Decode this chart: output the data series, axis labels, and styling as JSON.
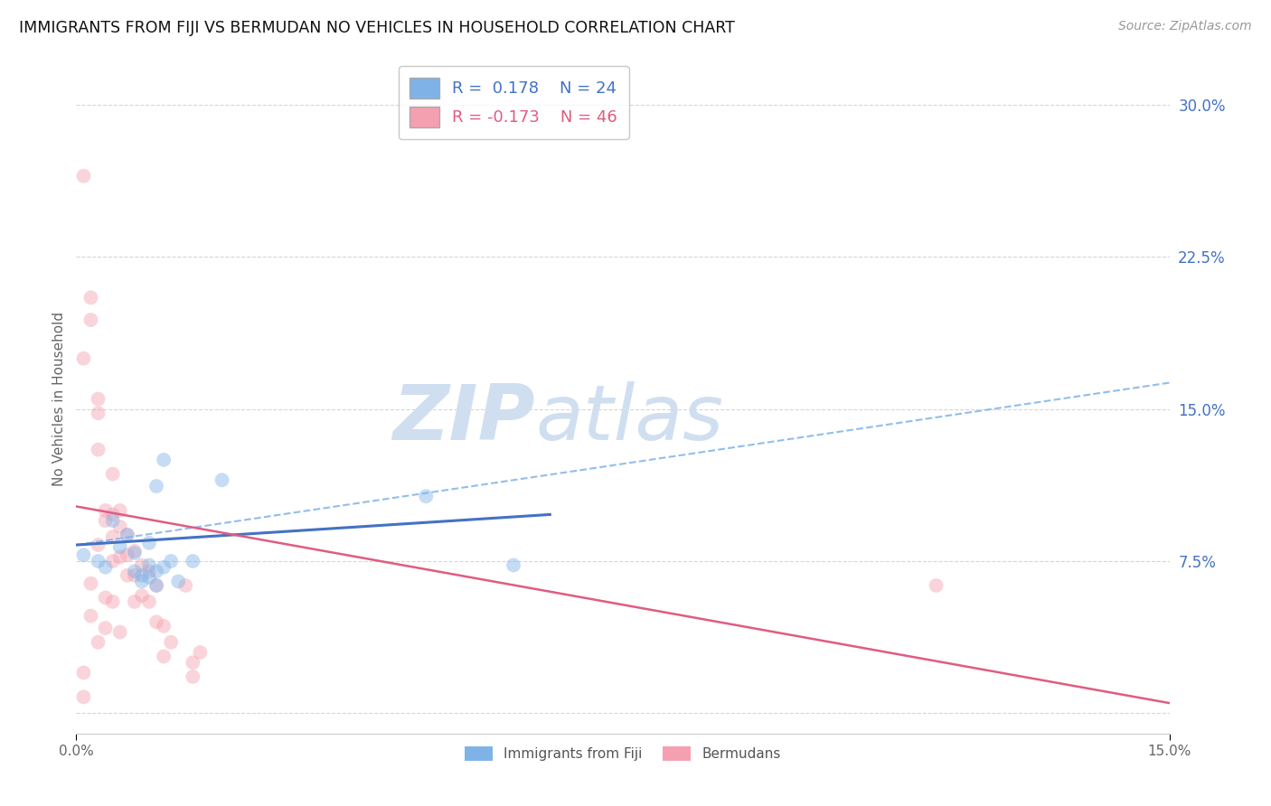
{
  "title": "IMMIGRANTS FROM FIJI VS BERMUDAN NO VEHICLES IN HOUSEHOLD CORRELATION CHART",
  "source": "Source: ZipAtlas.com",
  "ylabel_label": "No Vehicles in Household",
  "right_yticks": [
    0.0,
    0.075,
    0.15,
    0.225,
    0.3
  ],
  "right_yticklabels": [
    "",
    "7.5%",
    "15.0%",
    "22.5%",
    "30.0%"
  ],
  "xlim": [
    0.0,
    0.15
  ],
  "ylim": [
    -0.01,
    0.32
  ],
  "fiji_R": 0.178,
  "fiji_N": 24,
  "bermuda_R": -0.173,
  "bermuda_N": 46,
  "fiji_color": "#7fb3e8",
  "bermuda_color": "#f4a0b0",
  "fiji_line_color": "#4472c4",
  "bermuda_line_color": "#e05c80",
  "dashed_line_color": "#7fb3e8",
  "watermark_zip": "ZIP",
  "watermark_atlas": "atlas",
  "watermark_color": "#d0dff0",
  "background_color": "#ffffff",
  "fiji_scatter_x": [
    0.001,
    0.003,
    0.004,
    0.005,
    0.006,
    0.007,
    0.008,
    0.008,
    0.009,
    0.009,
    0.01,
    0.01,
    0.01,
    0.011,
    0.011,
    0.011,
    0.012,
    0.012,
    0.013,
    0.014,
    0.016,
    0.02,
    0.048,
    0.06
  ],
  "fiji_scatter_y": [
    0.078,
    0.075,
    0.072,
    0.095,
    0.082,
    0.088,
    0.07,
    0.079,
    0.065,
    0.068,
    0.073,
    0.067,
    0.084,
    0.063,
    0.07,
    0.112,
    0.072,
    0.125,
    0.075,
    0.065,
    0.075,
    0.115,
    0.107,
    0.073
  ],
  "bermuda_scatter_x": [
    0.001,
    0.002,
    0.002,
    0.003,
    0.003,
    0.003,
    0.004,
    0.004,
    0.005,
    0.005,
    0.005,
    0.005,
    0.006,
    0.006,
    0.006,
    0.007,
    0.007,
    0.007,
    0.008,
    0.008,
    0.008,
    0.009,
    0.009,
    0.01,
    0.01,
    0.011,
    0.011,
    0.012,
    0.012,
    0.013,
    0.015,
    0.016,
    0.016,
    0.017,
    0.002,
    0.003,
    0.004,
    0.001,
    0.001,
    0.002,
    0.003,
    0.004,
    0.005,
    0.006,
    0.118,
    0.001
  ],
  "bermuda_scatter_y": [
    0.265,
    0.205,
    0.194,
    0.155,
    0.148,
    0.13,
    0.1,
    0.095,
    0.118,
    0.098,
    0.087,
    0.075,
    0.1,
    0.092,
    0.077,
    0.088,
    0.078,
    0.068,
    0.08,
    0.068,
    0.055,
    0.073,
    0.058,
    0.07,
    0.055,
    0.063,
    0.045,
    0.043,
    0.028,
    0.035,
    0.063,
    0.025,
    0.018,
    0.03,
    0.064,
    0.083,
    0.057,
    0.175,
    0.008,
    0.048,
    0.035,
    0.042,
    0.055,
    0.04,
    0.063,
    0.02
  ],
  "fiji_line_x": [
    0.0,
    0.065
  ],
  "fiji_line_y": [
    0.083,
    0.098
  ],
  "bermuda_line_x": [
    0.0,
    0.15
  ],
  "bermuda_line_y": [
    0.102,
    0.005
  ],
  "dashed_line_x": [
    0.0,
    0.15
  ],
  "dashed_line_y": [
    0.083,
    0.163
  ],
  "legend_fiji_label": "Immigrants from Fiji",
  "legend_bermuda_label": "Bermudans",
  "scatter_size": 130,
  "scatter_alpha": 0.45,
  "grid_color": "#cccccc",
  "grid_style": "--",
  "grid_alpha": 0.8
}
